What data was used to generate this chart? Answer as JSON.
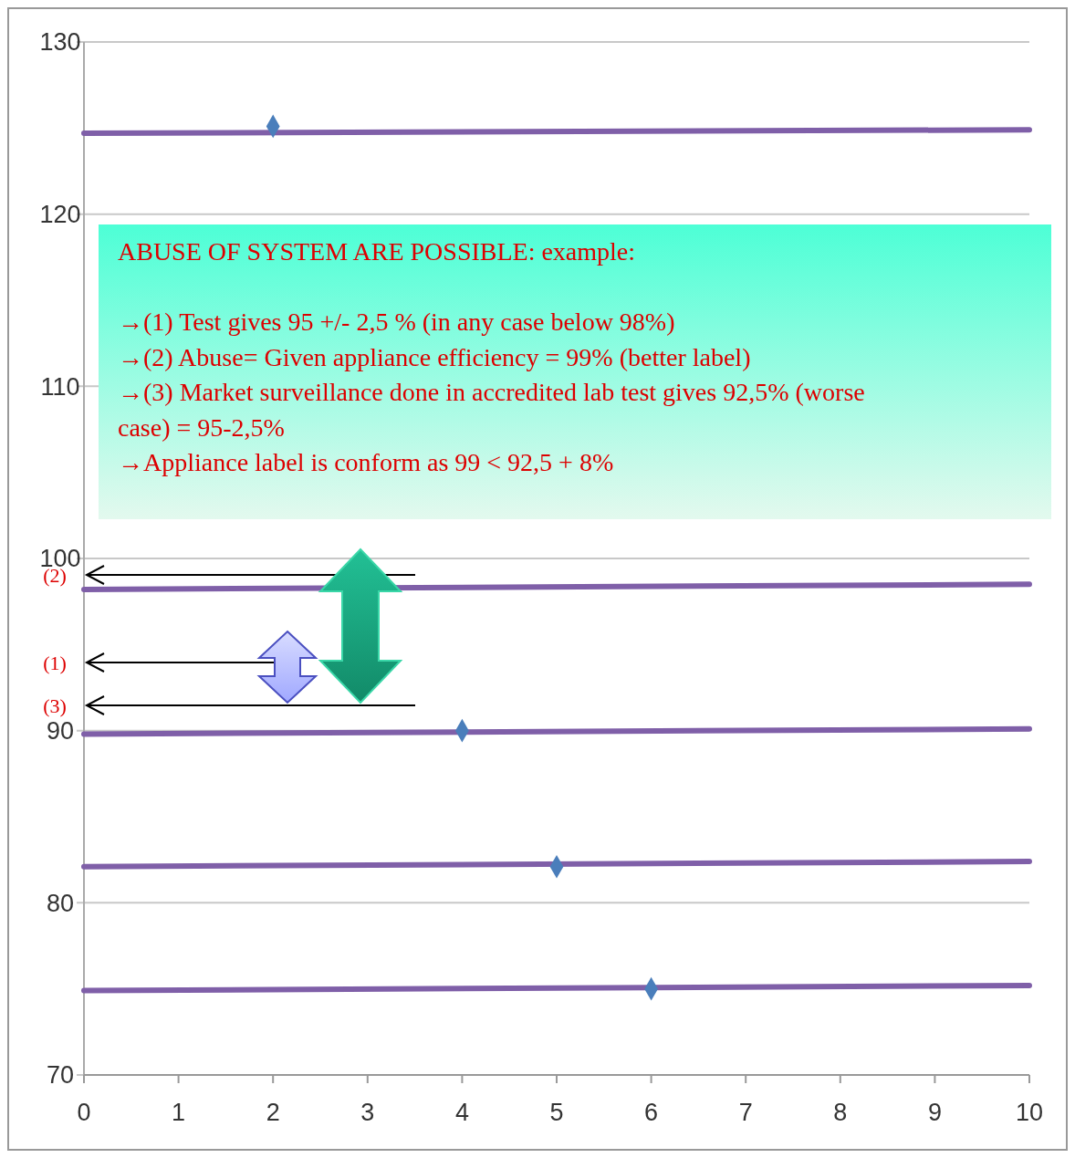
{
  "chart_data": {
    "type": "scatter",
    "xlim": [
      0,
      10
    ],
    "xticks": [
      0,
      1,
      2,
      3,
      4,
      5,
      6,
      7,
      8,
      9,
      10
    ],
    "ylim": [
      70,
      130
    ],
    "yticks": [
      70,
      80,
      90,
      100,
      110,
      120,
      130
    ],
    "grid": "y",
    "series": [
      {
        "type": "line",
        "x": [
          0,
          10
        ],
        "values": [
          124.7,
          124.9
        ],
        "color": "#7f5fa8"
      },
      {
        "type": "line",
        "x": [
          0,
          10
        ],
        "values": [
          98.2,
          98.5
        ],
        "color": "#7f5fa8"
      },
      {
        "type": "line",
        "x": [
          0,
          10
        ],
        "values": [
          89.8,
          90.1
        ],
        "color": "#7f5fa8"
      },
      {
        "type": "line",
        "x": [
          0,
          10
        ],
        "values": [
          82.1,
          82.4
        ],
        "color": "#7f5fa8"
      },
      {
        "type": "line",
        "x": [
          0,
          10
        ],
        "values": [
          74.9,
          75.2
        ],
        "color": "#7f5fa8"
      },
      {
        "x": [
          2,
          4,
          5,
          6
        ],
        "values": [
          125.1,
          90,
          82.1,
          75
        ],
        "color": "#4a7ebb",
        "marker": "diamond"
      }
    ],
    "annotations": [
      "ABUSE OF SYSTEM ARE POSSIBLE: example:",
      "→(1) Test gives 95 +/- 2,5 % (in any case below 98%)",
      "→(2) Abuse= Given appliance efficiency = 99% (better label)",
      "→(3) Market surveillance done in accredited lab test gives 92,5% (worse case) = 95-2,5%",
      "→Appliance label is conform as 99 < 92,5 + 8%",
      "(2)",
      "(1)",
      "(3)"
    ]
  }
}
